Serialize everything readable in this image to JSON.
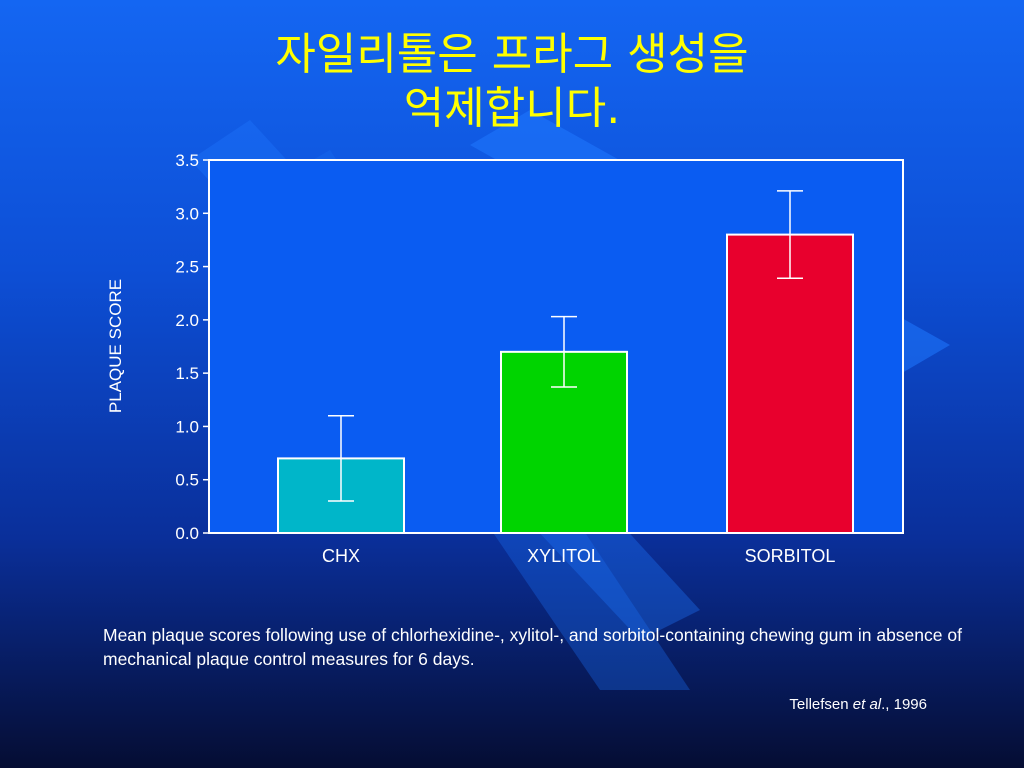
{
  "slide": {
    "title_line1": "자일리톨은 프라그 생성을",
    "title_line2": "억제합니다.",
    "caption": "Mean plaque scores following use of chlorhexidine-, xylitol-, and sorbitol-containing chewing gum in absence of mechanical plaque control measures for 6 days.",
    "citation_author": "Tellefsen ",
    "citation_etal": "et al",
    "citation_year": "., 1996"
  },
  "colors": {
    "title": "#ffff00",
    "text": "#ffffff",
    "plot_area": "#0a5cf2",
    "chx": "#00b6c9",
    "xylitol": "#00d400",
    "sorbitol": "#e8002d"
  },
  "chart_data": {
    "type": "bar",
    "title": "",
    "xlabel": "",
    "ylabel": "PLAQUE SCORE",
    "ylim": [
      0,
      3.5
    ],
    "yticks": [
      "0.0",
      "0.5",
      "1.0",
      "1.5",
      "2.0",
      "2.5",
      "3.0",
      "3.5"
    ],
    "categories": [
      "CHX",
      "XYLITOL",
      "SORBITOL"
    ],
    "values": [
      0.7,
      1.7,
      2.8
    ],
    "error": [
      0.4,
      0.33,
      0.41
    ],
    "bar_colors": [
      "#00b6c9",
      "#00d400",
      "#e8002d"
    ],
    "grid": false,
    "legend": "none"
  }
}
